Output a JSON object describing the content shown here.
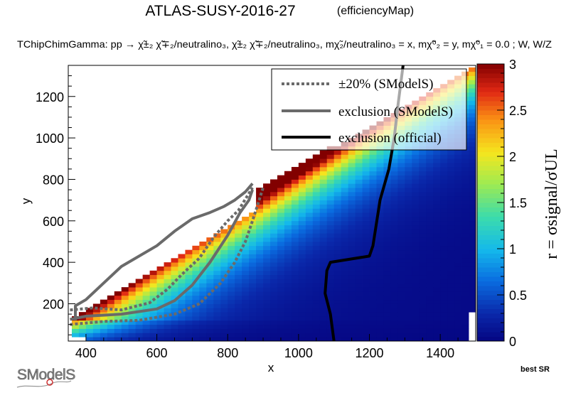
{
  "header": {
    "title": "ATLAS-SUSY-2016-27",
    "title_tag": "(efficiencyMap)",
    "process": "TChipChimGamma: pp → χ̃±₂ χ̃∓₂/neutralino₃, χ̃±₂ χ̃∓₂/neutralino₃, mχ̃₂/neutralino₃ = x, mχ̃⁰₂ = y, mχ̃⁰₁ = 0.0 ; W, W/Z"
  },
  "footer": {
    "best_sr": "best SR",
    "logo_text": "SModelS"
  },
  "colors": {
    "data_exclusion": "#000000",
    "smodels_exclusion": "#6a6a6a",
    "smodels_band": "#6a6a6a",
    "frame": "#000000"
  },
  "chart_data": {
    "type": "heatmap",
    "xlabel": "x",
    "ylabel": "y",
    "zlabel": "r = σsignal/σUL",
    "xlim": [
      350,
      1500
    ],
    "ylim": [
      20,
      1350
    ],
    "zlim": [
      0,
      3
    ],
    "x_ticks": [
      400,
      600,
      800,
      1000,
      1200,
      1400
    ],
    "y_ticks": [
      200,
      400,
      600,
      800,
      1000,
      1200
    ],
    "z_ticks": [
      0,
      0.5,
      1,
      1.5,
      2,
      2.5,
      3
    ],
    "cell_size": [
      20,
      20
    ],
    "legend": {
      "position": "top-right",
      "entries": [
        {
          "label": "±20% (SModelS)",
          "style": "dotted",
          "color": "#6a6a6a"
        },
        {
          "label": "exclusion (SModelS)",
          "style": "solid",
          "color": "#6a6a6a"
        },
        {
          "label": "exclusion (official)",
          "style": "solid",
          "color": "#000000"
        }
      ]
    },
    "official_exclusion": [
      [
        1100,
        20
      ],
      [
        1090,
        150
      ],
      [
        1075,
        250
      ],
      [
        1080,
        360
      ],
      [
        1090,
        400
      ],
      [
        1200,
        430
      ],
      [
        1210,
        480
      ],
      [
        1230,
        700
      ],
      [
        1255,
        850
      ],
      [
        1270,
        1000
      ],
      [
        1280,
        1150
      ],
      [
        1295,
        1350
      ]
    ],
    "smodels_exclusion": [
      [
        355,
        125
      ],
      [
        400,
        140
      ],
      [
        500,
        150
      ],
      [
        600,
        175
      ],
      [
        650,
        215
      ],
      [
        700,
        290
      ],
      [
        750,
        400
      ],
      [
        800,
        530
      ],
      [
        835,
        640
      ],
      [
        860,
        700
      ],
      [
        870,
        750
      ]
    ],
    "smodels_minus20": [
      [
        355,
        100
      ],
      [
        450,
        115
      ],
      [
        550,
        120
      ],
      [
        650,
        150
      ],
      [
        720,
        200
      ],
      [
        780,
        300
      ],
      [
        820,
        400
      ],
      [
        850,
        500
      ],
      [
        870,
        600
      ],
      [
        885,
        680
      ],
      [
        900,
        760
      ]
    ],
    "smodels_plus20": [
      [
        355,
        170
      ],
      [
        420,
        180
      ],
      [
        500,
        170
      ],
      [
        580,
        205
      ],
      [
        630,
        270
      ],
      [
        670,
        340
      ],
      [
        720,
        420
      ],
      [
        760,
        520
      ],
      [
        800,
        600
      ],
      [
        830,
        650
      ],
      [
        870,
        760
      ]
    ],
    "smodels_outer": [
      [
        370,
        120
      ],
      [
        370,
        190
      ],
      [
        400,
        220
      ],
      [
        450,
        300
      ],
      [
        500,
        380
      ],
      [
        600,
        480
      ],
      [
        650,
        550
      ],
      [
        700,
        610
      ],
      [
        750,
        640
      ],
      [
        790,
        670
      ],
      [
        820,
        700
      ],
      [
        850,
        740
      ],
      [
        870,
        780
      ]
    ]
  }
}
